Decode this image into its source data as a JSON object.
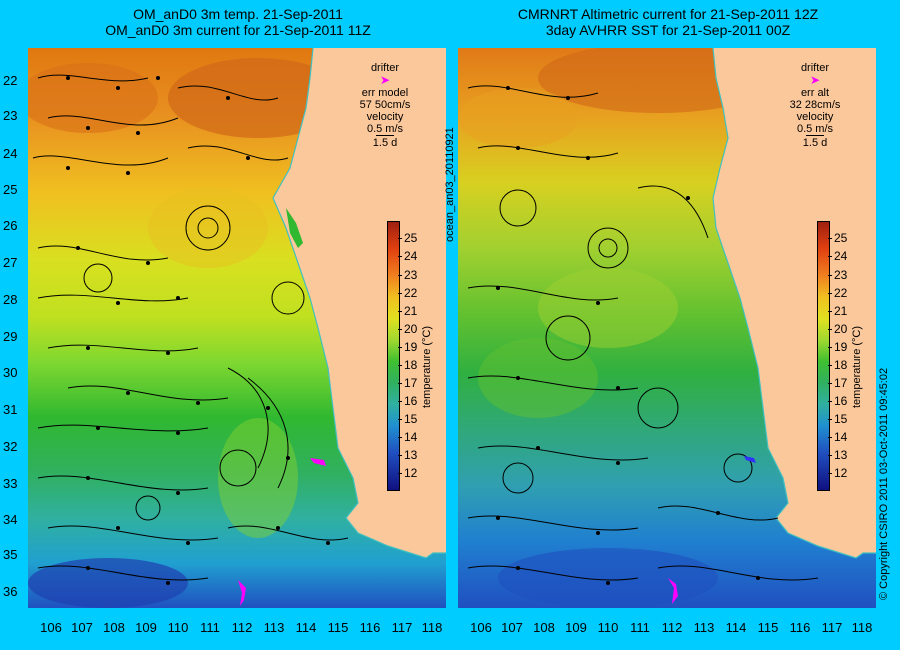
{
  "left_panel": {
    "title_line1": "OM_anD0 3m temp. 21-Sep-2011",
    "title_line2": "OM_anD0 3m current for 21-Sep-2011 11Z",
    "legend": {
      "drifter_label": "drifter",
      "err_label": "err model",
      "err_value": "57 50cm/s",
      "velocity_label": "velocity",
      "velocity_scale": "0.5 m/s",
      "velocity_time": "1.5 d"
    }
  },
  "right_panel": {
    "title_line1": "CMRNRT Altimetric current for 21-Sep-2011 12Z",
    "title_line2": "3day AVHRR SST for 21-Sep-2011 00Z",
    "legend": {
      "drifter_label": "drifter",
      "err_label": "err alt",
      "err_value": "32 28cm/s",
      "velocity_label": "velocity",
      "velocity_scale": "0.5 m/s",
      "velocity_time": "1.5 d"
    }
  },
  "colorbar": {
    "label": "temperature (°C)",
    "ticks": [
      "25",
      "24",
      "23",
      "22",
      "21",
      "20",
      "19",
      "18",
      "17",
      "16",
      "15",
      "14",
      "13",
      "12"
    ],
    "min": 11.5,
    "max": 26
  },
  "latitude_labels": [
    "22",
    "23",
    "24",
    "25",
    "26",
    "27",
    "28",
    "29",
    "30",
    "31",
    "32",
    "33",
    "34",
    "35",
    "36"
  ],
  "longitude_labels": [
    "106",
    "107",
    "108",
    "109",
    "110",
    "111",
    "112",
    "113",
    "114",
    "115",
    "116",
    "117",
    "118"
  ],
  "sidebar_text": {
    "product_id": "ocean_an03_20110921",
    "copyright": "© Copyright CSIRO 2011   03-Oct-2011 09:45:02"
  },
  "colors": {
    "background": "#00ccff",
    "land": "#fbc89b",
    "drifter": "#ff00ff",
    "coastline_contour": "#40c0c0"
  }
}
